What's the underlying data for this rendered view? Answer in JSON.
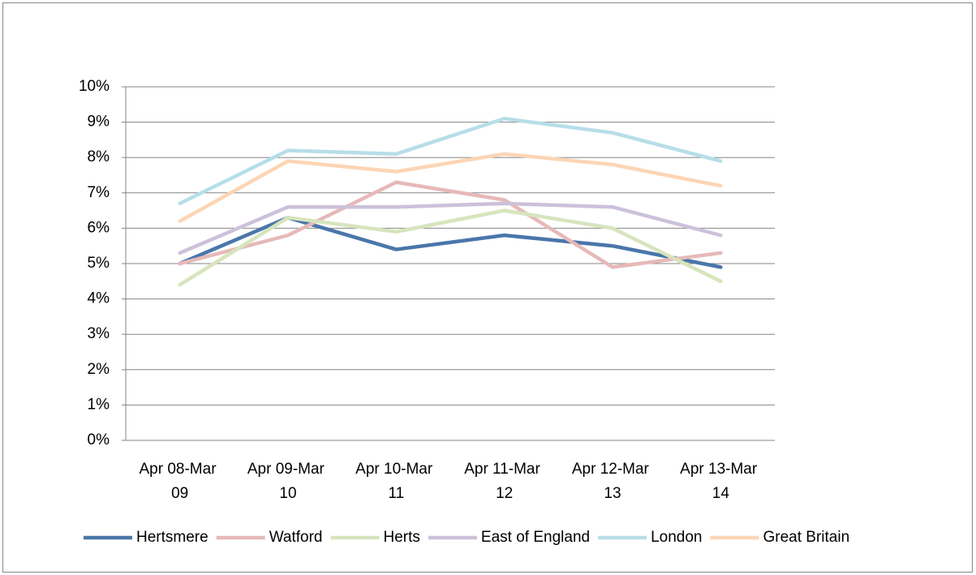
{
  "chart_data": {
    "type": "line",
    "categories": [
      "Apr 08-Mar 09",
      "Apr 09-Mar 10",
      "Apr 10-Mar 11",
      "Apr 11-Mar 12",
      "Apr 12-Mar 13",
      "Apr 13-Mar 14"
    ],
    "series": [
      {
        "name": "Hertsmere",
        "color": "#4a76aa",
        "values": [
          5.0,
          6.3,
          5.4,
          5.8,
          5.5,
          4.9
        ]
      },
      {
        "name": "Watford",
        "color": "#e6b9b8",
        "values": [
          5.0,
          5.8,
          7.3,
          6.8,
          4.9,
          5.3
        ]
      },
      {
        "name": "Herts",
        "color": "#d7e4bd",
        "values": [
          4.4,
          6.3,
          5.9,
          6.5,
          6.0,
          4.5
        ]
      },
      {
        "name": "East of England",
        "color": "#ccc1da",
        "values": [
          5.3,
          6.6,
          6.6,
          6.7,
          6.6,
          5.8
        ]
      },
      {
        "name": "London",
        "color": "#b7dee8",
        "values": [
          6.7,
          8.2,
          8.1,
          9.1,
          8.7,
          7.9
        ]
      },
      {
        "name": "Great Britain",
        "color": "#fcd5b5",
        "values": [
          6.2,
          7.9,
          7.6,
          8.1,
          7.8,
          7.2
        ]
      }
    ],
    "ylim": [
      0,
      10
    ],
    "yticks": [
      {
        "value": 0,
        "label": "0%"
      },
      {
        "value": 1,
        "label": "1%"
      },
      {
        "value": 2,
        "label": "2%"
      },
      {
        "value": 3,
        "label": "3%"
      },
      {
        "value": 4,
        "label": "4%"
      },
      {
        "value": 5,
        "label": "5%"
      },
      {
        "value": 6,
        "label": "6%"
      },
      {
        "value": 7,
        "label": "7%"
      },
      {
        "value": 8,
        "label": "8%"
      },
      {
        "value": 9,
        "label": "9%"
      },
      {
        "value": 10,
        "label": "10%"
      }
    ],
    "grid": true,
    "legend": "bottom"
  }
}
